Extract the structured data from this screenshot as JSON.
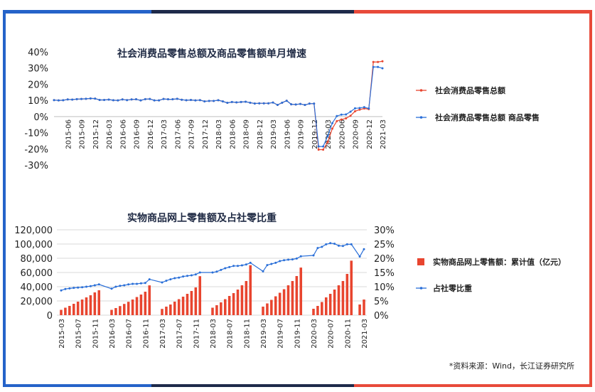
{
  "colors": {
    "blue": "#2563c9",
    "navy": "#1e2a4a",
    "red": "#e84a3a",
    "series_red": "#e8452f",
    "series_blue": "#2a6fd8"
  },
  "source_text": "*资料来源：Wind，长江证券研究所",
  "chart_data": [
    {
      "type": "line",
      "title": "社会消费品零售总额及商品零售额单月增速",
      "ylim": [
        -30,
        40
      ],
      "y_ticks": [
        "40%",
        "30%",
        "20%",
        "10%",
        "0%",
        "-10%",
        "-20%",
        "-30%"
      ],
      "x_tick_labels": [
        "2015-06",
        "2015-09",
        "2015-12",
        "2016-03",
        "2016-06",
        "2016-09",
        "2016-12",
        "2017-03",
        "2017-06",
        "2017-09",
        "2017-12",
        "2018-03",
        "2018-06",
        "2018-09",
        "2018-12",
        "2019-03",
        "2019-06",
        "2019-09",
        "2019-12",
        "2020-03",
        "2020-06",
        "2020-09",
        "2020-12",
        "2021-03"
      ],
      "x": [
        "2015-03",
        "2015-04",
        "2015-05",
        "2015-06",
        "2015-07",
        "2015-08",
        "2015-09",
        "2015-10",
        "2015-11",
        "2015-12",
        "2016-01",
        "2016-02",
        "2016-03",
        "2016-04",
        "2016-05",
        "2016-06",
        "2016-07",
        "2016-08",
        "2016-09",
        "2016-10",
        "2016-11",
        "2016-12",
        "2017-01",
        "2017-02",
        "2017-03",
        "2017-04",
        "2017-05",
        "2017-06",
        "2017-07",
        "2017-08",
        "2017-09",
        "2017-10",
        "2017-11",
        "2017-12",
        "2018-01",
        "2018-02",
        "2018-03",
        "2018-04",
        "2018-05",
        "2018-06",
        "2018-07",
        "2018-08",
        "2018-09",
        "2018-10",
        "2018-11",
        "2018-12",
        "2019-01",
        "2019-02",
        "2019-03",
        "2019-04",
        "2019-05",
        "2019-06",
        "2019-07",
        "2019-08",
        "2019-09",
        "2019-10",
        "2019-11",
        "2019-12",
        "2020-01",
        "2020-02",
        "2020-03",
        "2020-04",
        "2020-05",
        "2020-06",
        "2020-07",
        "2020-08",
        "2020-09",
        "2020-10",
        "2020-11",
        "2020-12",
        "2021-01",
        "2021-02",
        "2021-03"
      ],
      "series": [
        {
          "name": "社会消费品零售总额",
          "color": "#e8452f",
          "values": [
            10.2,
            10.0,
            10.1,
            10.6,
            10.5,
            10.8,
            10.9,
            11.0,
            11.2,
            11.1,
            10.3,
            10.3,
            10.5,
            10.1,
            10.0,
            10.6,
            10.2,
            10.6,
            10.7,
            10.0,
            10.8,
            10.9,
            10.0,
            10.0,
            10.9,
            10.7,
            10.7,
            11.0,
            10.4,
            10.1,
            10.3,
            10.0,
            10.2,
            9.4,
            9.7,
            9.7,
            10.1,
            9.4,
            8.5,
            9.0,
            8.8,
            9.0,
            9.2,
            8.6,
            8.1,
            8.2,
            8.2,
            8.2,
            8.7,
            7.2,
            8.6,
            9.8,
            7.6,
            7.5,
            7.8,
            7.2,
            8.0,
            8.0,
            -20.5,
            -20.5,
            -15.8,
            -7.5,
            -2.8,
            -1.8,
            -1.1,
            0.5,
            3.3,
            4.3,
            5.0,
            4.6,
            33.8,
            33.8,
            34.2
          ]
        },
        {
          "name": "社会消费品零售总额 商品零售",
          "color": "#2a6fd8",
          "values": [
            10.2,
            10.0,
            10.1,
            10.6,
            10.5,
            10.8,
            10.9,
            11.0,
            11.2,
            11.1,
            10.3,
            10.3,
            10.5,
            10.1,
            10.0,
            10.6,
            10.2,
            10.6,
            10.7,
            10.0,
            10.8,
            10.9,
            10.0,
            10.0,
            10.9,
            10.7,
            10.7,
            11.0,
            10.4,
            10.1,
            10.3,
            10.0,
            10.2,
            9.4,
            9.7,
            9.7,
            10.1,
            9.4,
            8.5,
            9.0,
            8.8,
            9.0,
            9.2,
            8.6,
            8.1,
            8.2,
            8.2,
            8.2,
            8.7,
            7.2,
            8.6,
            9.8,
            7.6,
            7.5,
            7.8,
            7.2,
            8.0,
            8.0,
            -18.5,
            -18.5,
            -12.0,
            -4.1,
            0.3,
            1.2,
            1.3,
            3.0,
            5.1,
            5.3,
            5.8,
            5.0,
            30.7,
            30.7,
            29.9
          ]
        }
      ]
    },
    {
      "type": "bar",
      "title": "实物商品网上零售额及占社零比重",
      "ylim": [
        0,
        120000
      ],
      "y2lim": [
        0,
        30
      ],
      "y_ticks": [
        "120,000",
        "100,000",
        "80,000",
        "60,000",
        "40,000",
        "20,000",
        "0"
      ],
      "y2_ticks": [
        "30%",
        "25%",
        "20%",
        "15%",
        "10%",
        "5%",
        "0%"
      ],
      "x_tick_labels": [
        "2015-03",
        "2015-07",
        "2015-11",
        "2016-03",
        "2016-07",
        "2016-11",
        "2017-03",
        "2017-07",
        "2017-11",
        "2018-03",
        "2018-07",
        "2018-11",
        "2019-03",
        "2019-07",
        "2019-11",
        "2020-03",
        "2020-07",
        "2020-11",
        "2021-03"
      ],
      "x": [
        "2015-03",
        "2015-04",
        "2015-05",
        "2015-06",
        "2015-07",
        "2015-08",
        "2015-09",
        "2015-10",
        "2015-11",
        "2015-12",
        "2016-01",
        "2016-02",
        "2016-03",
        "2016-04",
        "2016-05",
        "2016-06",
        "2016-07",
        "2016-08",
        "2016-09",
        "2016-10",
        "2016-11",
        "2016-12",
        "2017-01",
        "2017-02",
        "2017-03",
        "2017-04",
        "2017-05",
        "2017-06",
        "2017-07",
        "2017-08",
        "2017-09",
        "2017-10",
        "2017-11",
        "2017-12",
        "2018-01",
        "2018-02",
        "2018-03",
        "2018-04",
        "2018-05",
        "2018-06",
        "2018-07",
        "2018-08",
        "2018-09",
        "2018-10",
        "2018-11",
        "2018-12",
        "2019-01",
        "2019-02",
        "2019-03",
        "2019-04",
        "2019-05",
        "2019-06",
        "2019-07",
        "2019-08",
        "2019-09",
        "2019-10",
        "2019-11",
        "2019-12",
        "2020-01",
        "2020-02",
        "2020-03",
        "2020-04",
        "2020-05",
        "2020-06",
        "2020-07",
        "2020-08",
        "2020-09",
        "2020-10",
        "2020-11",
        "2020-12",
        "2021-01",
        "2021-02",
        "2021-03"
      ],
      "series": [
        {
          "name": "实物商品网上零售额：累计值（亿元）",
          "color": "#e8452f",
          "kind": "bar",
          "values": [
            7500,
            10500,
            13000,
            16000,
            19000,
            22000,
            25000,
            28000,
            32000,
            35000,
            null,
            null,
            7500,
            10000,
            12800,
            15800,
            18800,
            22000,
            25500,
            29000,
            33000,
            41900,
            null,
            null,
            8800,
            12000,
            15000,
            19000,
            22500,
            26000,
            30000,
            34000,
            39000,
            54800,
            null,
            null,
            10500,
            14000,
            18000,
            22500,
            27000,
            31000,
            36000,
            42000,
            48000,
            70200,
            null,
            null,
            12000,
            16500,
            21500,
            26500,
            31500,
            36500,
            42000,
            48000,
            55000,
            66900,
            null,
            null,
            9000,
            13000,
            18500,
            25000,
            30000,
            36000,
            42000,
            48000,
            58000,
            76600,
            null,
            15000,
            22000
          ]
        },
        {
          "name": "占社零比重",
          "color": "#2a6fd8",
          "kind": "line",
          "values": [
            8.7,
            9.2,
            9.4,
            9.6,
            9.7,
            9.8,
            10.0,
            10.2,
            10.5,
            10.8,
            null,
            null,
            9.3,
            10.0,
            10.3,
            10.5,
            10.8,
            11.0,
            11.0,
            11.2,
            11.3,
            12.6,
            null,
            null,
            11.5,
            12.1,
            12.6,
            13.0,
            13.2,
            13.6,
            13.8,
            14.0,
            14.3,
            15.0,
            null,
            null,
            15.0,
            15.3,
            15.9,
            16.5,
            16.9,
            17.3,
            17.3,
            17.5,
            17.8,
            18.4,
            null,
            null,
            15.4,
            17.6,
            18.0,
            18.4,
            19.0,
            19.3,
            19.5,
            19.6,
            19.9,
            20.7,
            null,
            null,
            21.0,
            23.6,
            24.0,
            24.9,
            25.3,
            25.1,
            24.4,
            24.3,
            24.9,
            24.9,
            null,
            20.6,
            23.2
          ]
        }
      ]
    }
  ]
}
